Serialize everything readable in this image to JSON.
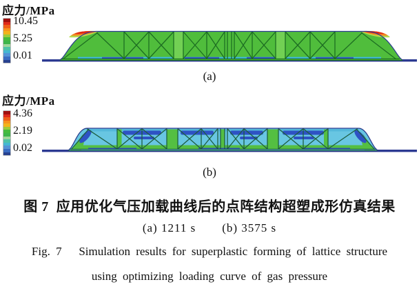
{
  "chart_data": [
    {
      "type": "heatmap",
      "subfigure": "(a)",
      "legend_title": "应力/MPa",
      "unit": "MPa",
      "colorbar_ticks": [
        10.45,
        5.25,
        0.01
      ],
      "colorbar_range": [
        0.01,
        10.45
      ],
      "time_shown": "1211 s",
      "summary": "Stress contour of lattice sandwich structure during superplastic forming at 1211 s: body mostly mid stress (green, about 5 MPa), peak stress up to 10.45 MPa (red/orange) at top corners of both end slopes, near-zero stress (dark blue) in the flat sheet and bottom skin."
    },
    {
      "type": "heatmap",
      "subfigure": "(b)",
      "legend_title": "应力/MPa",
      "unit": "MPa",
      "colorbar_ticks": [
        4.36,
        2.19,
        0.02
      ],
      "colorbar_range": [
        0.02,
        4.36
      ],
      "time_shown": "3575 s",
      "summary": "Stress contour at 3575 s: body mostly low-mid stress (cyan, about 1.5 MPa) with green bands (about 2 MPa) along the bottom skin and vertical struts, and dark-blue low-stress patches below the top skin and in the end slopes."
    }
  ],
  "colorbar_colors": [
    "#a01010",
    "#df2a1b",
    "#ef5f1a",
    "#f7941e",
    "#f2b31c",
    "#9ccb3b",
    "#46bb3e",
    "#3eb54a",
    "#9fd79b",
    "#4fc3a8",
    "#45b7d2",
    "#5493d6",
    "#3a6cc2",
    "#28418f"
  ],
  "panels": {
    "a": {
      "legend_title": "应力/MPa",
      "tick_max": "10.45",
      "tick_mid": "5.25",
      "tick_min": "0.01",
      "label": "(a)"
    },
    "b": {
      "legend_title": "应力/MPa",
      "tick_max": "4.36",
      "tick_mid": "2.19",
      "tick_min": "0.02",
      "label": "(b)"
    }
  },
  "captions": {
    "chinese": "图 7  应用优化气压加载曲线后的点阵结构超塑成形仿真结果",
    "sub_a": "(a) 1211 s",
    "sub_b": "(b) 3575 s",
    "english_line1": "Fig. 7   Simulation results for superplastic forming of lattice structure",
    "english_line2": "using optimizing loading curve of gas pressure"
  }
}
